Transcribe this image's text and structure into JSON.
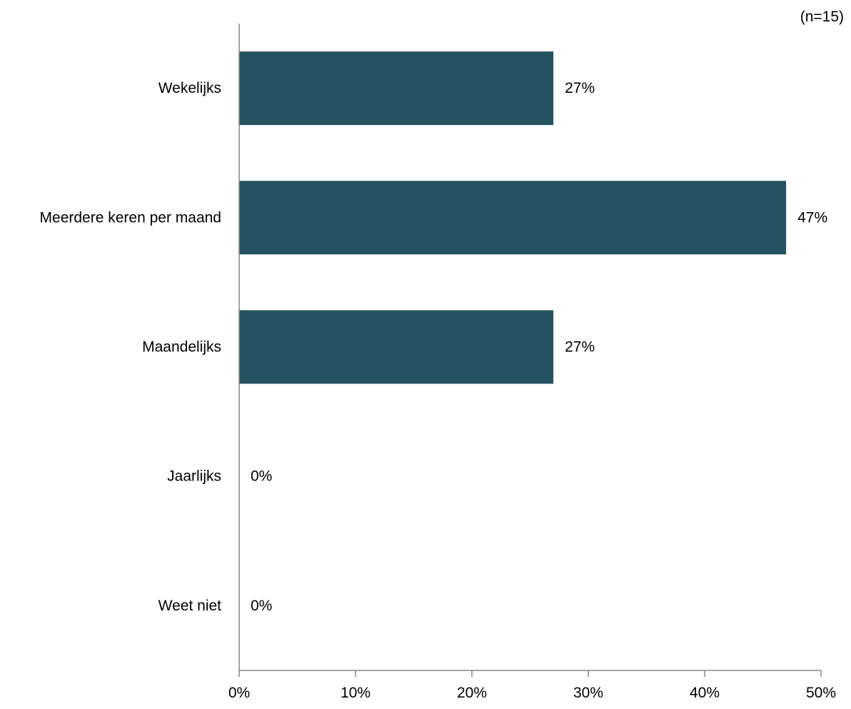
{
  "chart_data": {
    "type": "bar",
    "orientation": "horizontal",
    "note": "(n=15)",
    "categories": [
      "Wekelijks",
      "Meerdere keren per maand",
      "Maandelijks",
      "Jaarlijks",
      "Weet niet"
    ],
    "values": [
      27,
      47,
      27,
      0,
      0
    ],
    "value_labels": [
      "27%",
      "47%",
      "27%",
      "0%",
      "0%"
    ],
    "xlim": [
      0,
      50
    ],
    "x_ticks": [
      0,
      10,
      20,
      30,
      40,
      50
    ],
    "x_tick_labels": [
      "0%",
      "10%",
      "20%",
      "30%",
      "40%",
      "50%"
    ],
    "title": "",
    "xlabel": "",
    "ylabel": "",
    "grid": false,
    "legend": "none",
    "bar_color": "#245260",
    "axis_color": "#868686"
  }
}
